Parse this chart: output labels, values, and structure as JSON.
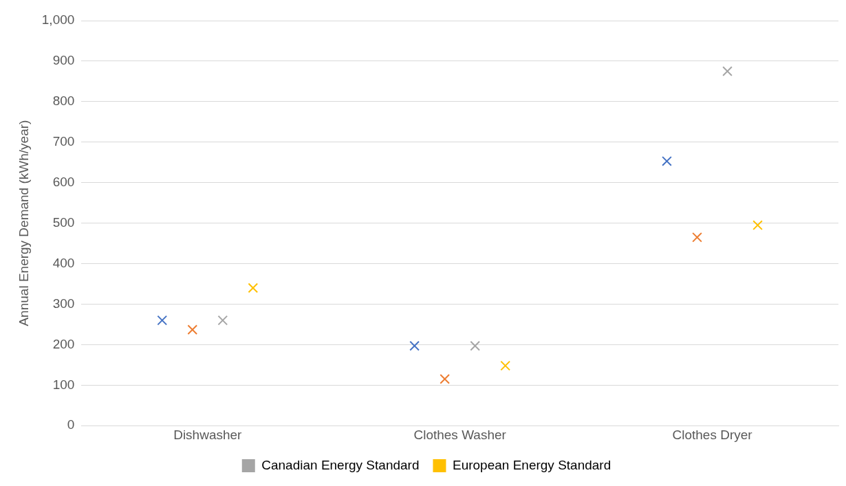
{
  "chart_data": {
    "type": "scatter",
    "ylabel": "Annual Energy Demand (kWh/year)",
    "categories": [
      "Dishwasher",
      "Clothes Washer",
      "Clothes Dryer"
    ],
    "series": [
      {
        "color": "#4472c4",
        "values": [
          260,
          197,
          653
        ]
      },
      {
        "color": "#ed7d31",
        "values": [
          237,
          115,
          465
        ]
      },
      {
        "name": "Canadian Energy Standard",
        "color": "#a5a5a5",
        "values": [
          260,
          197,
          875
        ]
      },
      {
        "name": "European Energy Standard",
        "color": "#ffc000",
        "values": [
          340,
          148,
          495
        ]
      }
    ],
    "ylim": [
      0,
      1000
    ],
    "yticks": [
      0,
      100,
      200,
      300,
      400,
      500,
      600,
      700,
      800,
      900,
      {
        "value": 1000,
        "label": "1,000"
      }
    ],
    "grid": "y",
    "legend": "bottom",
    "marker": "cross"
  }
}
